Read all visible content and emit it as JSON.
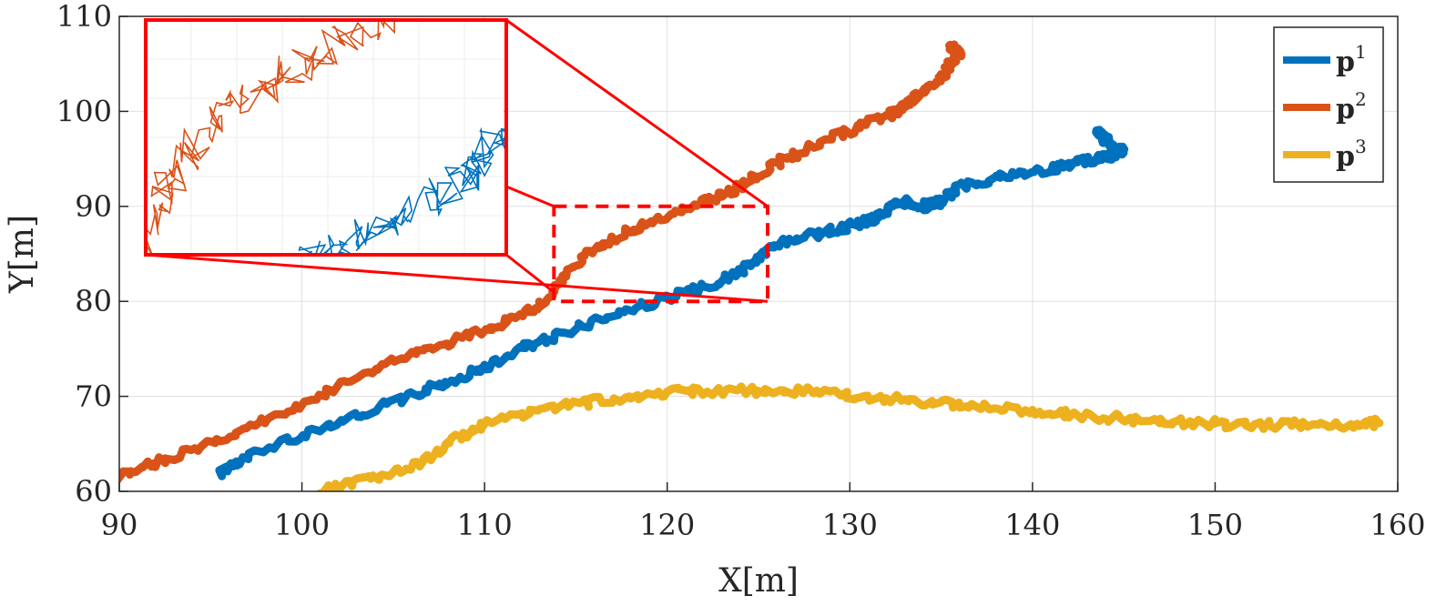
{
  "chart_data": {
    "type": "line",
    "title": "",
    "xlabel": "X[m]",
    "ylabel": "Y[m]",
    "xlim": [
      90,
      160
    ],
    "ylim": [
      60,
      110
    ],
    "xticks": [
      "90",
      "100",
      "110",
      "120",
      "130",
      "140",
      "150",
      "160"
    ],
    "yticks": [
      "60",
      "70",
      "80",
      "90",
      "100",
      "110"
    ],
    "grid": true,
    "legend_position": "top-right",
    "series": [
      {
        "name": "p",
        "superscript": "1",
        "color": "#0072BD",
        "x": [
          95.5,
          97,
          100,
          103,
          106,
          108,
          110,
          112,
          114,
          117,
          120,
          122,
          124,
          125,
          126,
          128,
          130,
          131,
          132,
          133,
          134,
          135,
          136,
          138,
          140,
          142,
          143.5,
          144.5,
          145,
          144,
          143.5
        ],
        "y": [
          62,
          63.5,
          66,
          68,
          70,
          71.5,
          73,
          75,
          76.5,
          78.5,
          80.3,
          81.5,
          83,
          84.5,
          86,
          87,
          88,
          88.5,
          89.5,
          90.5,
          90,
          90.5,
          92,
          93,
          93.5,
          94.5,
          95,
          95.5,
          96,
          97,
          98
        ]
      },
      {
        "name": "p",
        "superscript": "2",
        "color": "#D95319",
        "x": [
          90,
          92,
          95,
          98,
          101,
          104,
          107,
          110,
          112,
          113.5,
          114.5,
          116,
          118,
          120,
          122,
          124,
          125,
          127,
          130,
          132,
          133,
          134,
          135,
          135.5,
          136,
          135.5
        ],
        "y": [
          61.5,
          63,
          65,
          67.5,
          70,
          73,
          75,
          77,
          78.5,
          80,
          83,
          85.5,
          87.5,
          89,
          90.5,
          92,
          93.5,
          95.5,
          98,
          99.5,
          100.5,
          102,
          103.5,
          105,
          106,
          107
        ]
      },
      {
        "name": "p",
        "superscript": "3",
        "color": "#EDB120",
        "x": [
          101,
          104,
          106.5,
          108.5,
          110,
          113,
          116,
          119,
          122,
          125,
          128,
          131,
          134,
          137,
          140,
          143,
          146,
          149,
          152,
          155,
          158,
          159
        ],
        "y": [
          60,
          61.5,
          63,
          65.5,
          67,
          68.5,
          69.5,
          70.3,
          70.6,
          70.6,
          70.5,
          70,
          69.5,
          69,
          68.5,
          68,
          67.5,
          67.2,
          67,
          67,
          67,
          67.2
        ]
      }
    ],
    "zoom_inset": {
      "source_xlim": [
        113.8,
        125.5
      ],
      "source_ylim": [
        80,
        90
      ],
      "frame_color": "#FF0000"
    }
  }
}
